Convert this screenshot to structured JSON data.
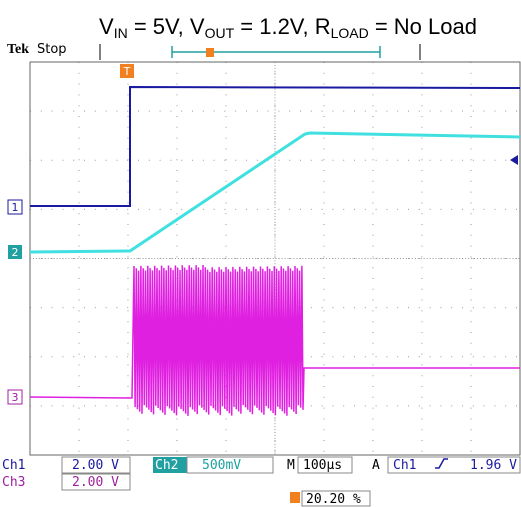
{
  "title": {
    "segments": [
      "V",
      "IN",
      " = 5V, V",
      "OUT",
      " = 1.2V, R",
      "LOAD",
      " = No Load"
    ]
  },
  "header": {
    "brand": "Tek",
    "state": "Stop"
  },
  "markers": {
    "trigger": "T",
    "ch1": "1",
    "ch2": "2",
    "ch3": "3"
  },
  "status": {
    "row1": {
      "ch1": "Ch1",
      "ch1_scale": "2.00 V",
      "ch2": "Ch2",
      "ch2_scale": "500mV",
      "time_label": "M",
      "time_scale": "100µs",
      "trig_mode": "A",
      "trig_source": "Ch1",
      "trig_level": "1.96 V"
    },
    "row2": {
      "ch3": "Ch3",
      "ch3_scale": "2.00 V"
    },
    "trigger_position": "20.20 %"
  }
}
